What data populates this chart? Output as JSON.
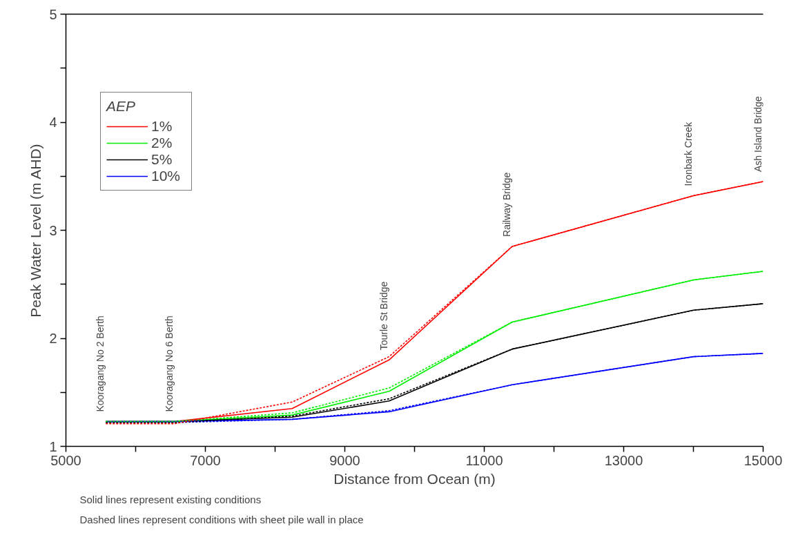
{
  "chart_data": {
    "type": "line",
    "xlabel": "Distance from Ocean (m)",
    "ylabel": "Peak Water Level (m AHD)",
    "legend_title": "AEP",
    "x": [
      5572,
      6560,
      8245,
      9635,
      11400,
      14000,
      15000
    ],
    "series": [
      {
        "name": "1%",
        "color": "#ff0000",
        "line_style": "solid",
        "values": [
          1.23,
          1.23,
          1.35,
          1.8,
          2.85,
          3.32,
          3.45
        ]
      },
      {
        "name": "2%",
        "color": "#00ee00",
        "line_style": "solid",
        "values": [
          1.23,
          1.23,
          1.29,
          1.51,
          2.15,
          2.54,
          2.62
        ]
      },
      {
        "name": "5%",
        "color": "#000000",
        "line_style": "solid",
        "values": [
          1.23,
          1.23,
          1.27,
          1.42,
          1.9,
          2.26,
          2.32
        ]
      },
      {
        "name": "10%",
        "color": "#0000ff",
        "line_style": "solid",
        "values": [
          1.23,
          1.23,
          1.25,
          1.32,
          1.57,
          1.83,
          1.86
        ]
      },
      {
        "color": "#ff0000",
        "line_style": "dashed",
        "values": [
          1.21,
          1.21,
          1.41,
          1.83,
          2.85,
          3.32,
          3.45
        ]
      },
      {
        "color": "#00ee00",
        "line_style": "dashed",
        "values": [
          1.23,
          1.23,
          1.31,
          1.54,
          2.15,
          2.54,
          2.62
        ]
      },
      {
        "color": "#000000",
        "line_style": "dashed",
        "values": [
          1.22,
          1.22,
          1.28,
          1.44,
          1.9,
          2.26,
          2.32
        ]
      },
      {
        "color": "#0000ff",
        "line_style": "dashed",
        "values": [
          1.22,
          1.22,
          1.25,
          1.33,
          1.57,
          1.83,
          1.86
        ]
      }
    ],
    "xlim": [
      5000,
      15000
    ],
    "ylim": [
      1,
      5
    ],
    "xticks": [
      5000,
      {
        "value": 6000,
        "label": null
      },
      7000,
      {
        "value": 8000,
        "label": null
      },
      9000,
      {
        "value": 10000,
        "label": null
      },
      11000,
      {
        "value": 12000,
        "label": null
      },
      13000,
      {
        "value": 14000,
        "label": null
      },
      15000
    ],
    "yticks": [
      1,
      {
        "value": 1.5,
        "label": null
      },
      2,
      {
        "value": 2.5,
        "label": null
      },
      3,
      {
        "value": 3.5,
        "label": null
      },
      4,
      {
        "value": 4.5,
        "label": null
      },
      5
    ],
    "grid": false,
    "legend": "top left",
    "marker": "none",
    "annotations": [
      {
        "text": "Kooragang No 2 Berth",
        "x": 5572,
        "y": 1.23
      },
      {
        "text": "Kooragang No 6 Berth",
        "x": 6560,
        "y": 1.23
      },
      {
        "text": "Tourle St Bridge",
        "x": 9635,
        "y": 1.8
      },
      {
        "text": "Railway Bridge",
        "x": 11400,
        "y": 2.85
      },
      {
        "text": "Ironbark Creek",
        "x": 14000,
        "y": 3.32
      },
      {
        "text": "Ash Island Bridge",
        "x": 15000,
        "y": 3.45
      },
      "Solid lines represent existing conditions",
      "Dashed lines represent conditions with sheet pile wall in place"
    ]
  }
}
